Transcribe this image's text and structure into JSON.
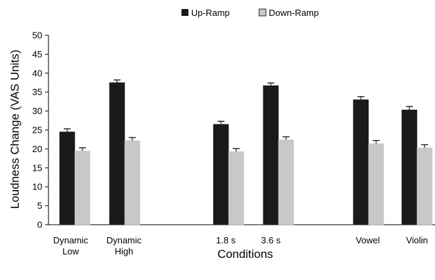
{
  "chart_data": {
    "type": "bar",
    "title": "",
    "xlabel": "Conditions",
    "ylabel": "Loudness Change (VAS Units)",
    "ylim": [
      0,
      50
    ],
    "yticks": [
      0,
      5,
      10,
      15,
      20,
      25,
      30,
      35,
      40,
      45,
      50
    ],
    "categories": [
      {
        "lines": [
          "Dynamic",
          "Low"
        ]
      },
      {
        "lines": [
          "Dynamic",
          "High"
        ]
      },
      {
        "lines": [
          "1.8 s"
        ]
      },
      {
        "lines": [
          "3.6 s"
        ]
      },
      {
        "lines": [
          "Vowel"
        ]
      },
      {
        "lines": [
          "Violin"
        ]
      }
    ],
    "series": [
      {
        "name": "Up-Ramp",
        "color": "#1a1a1a",
        "values": [
          24.5,
          37.5,
          26.5,
          36.7,
          33.0,
          30.3
        ],
        "errors": [
          0.8,
          0.7,
          0.8,
          0.7,
          0.8,
          0.9
        ]
      },
      {
        "name": "Down-Ramp",
        "color": "#c8c8c8",
        "values": [
          19.5,
          22.2,
          19.3,
          22.4,
          21.4,
          20.3
        ],
        "errors": [
          0.8,
          0.8,
          0.8,
          0.8,
          0.8,
          0.8
        ]
      }
    ],
    "legend_position": "top-center",
    "grid": false
  }
}
